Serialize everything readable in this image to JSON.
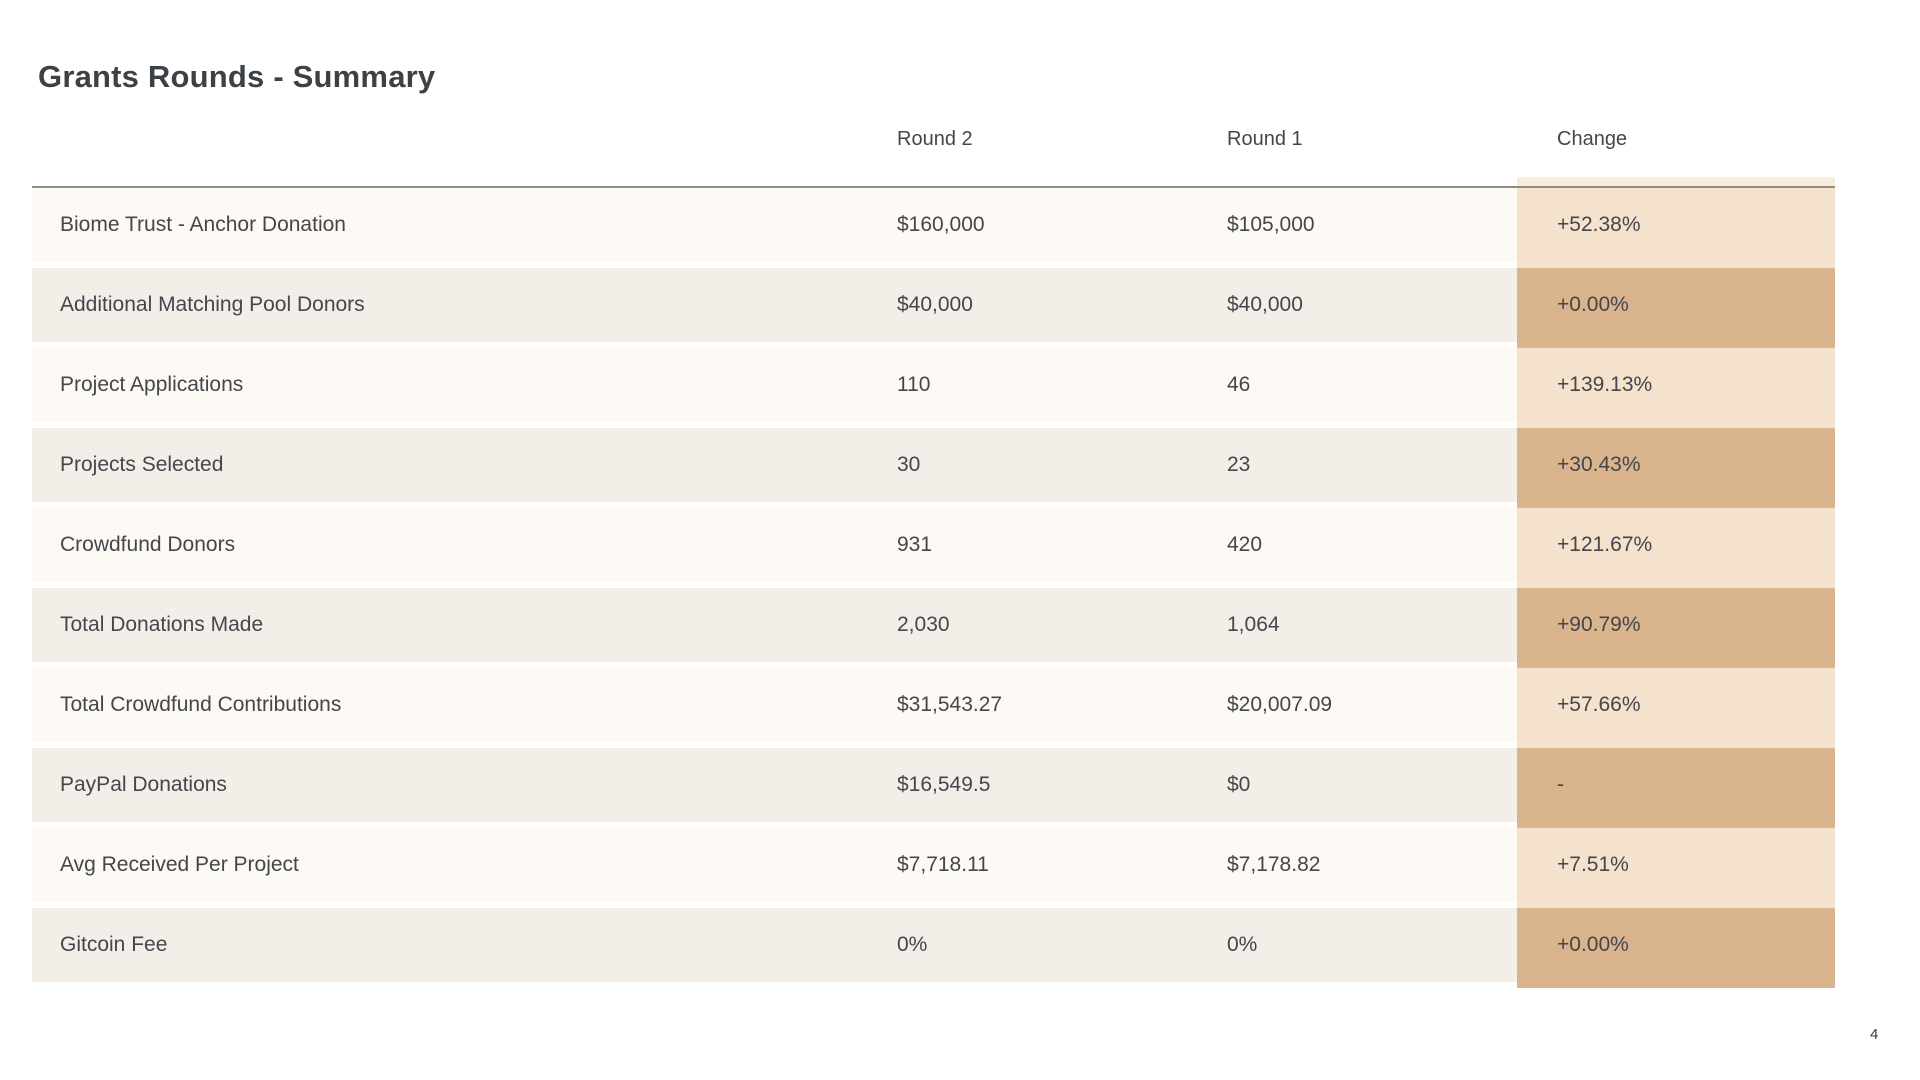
{
  "page": {
    "title": "Grants Rounds - Summary",
    "page_number": "4"
  },
  "table": {
    "header": {
      "round2": "Round 2",
      "round1": "Round 1",
      "change": "Change"
    },
    "rows": [
      {
        "label": "Biome Trust - Anchor Donation",
        "round2": "$160,000",
        "round1": "$105,000",
        "change": "+52.38%"
      },
      {
        "label": "Additional Matching Pool Donors",
        "round2": "$40,000",
        "round1": "$40,000",
        "change": "+0.00%"
      },
      {
        "label": "Project Applications",
        "round2": "110",
        "round1": "46",
        "change": "+139.13%"
      },
      {
        "label": "Projects Selected",
        "round2": "30",
        "round1": "23",
        "change": "+30.43%"
      },
      {
        "label": "Crowdfund Donors",
        "round2": "931",
        "round1": "420",
        "change": "+121.67%"
      },
      {
        "label": "Total Donations Made",
        "round2": "2,030",
        "round1": "1,064",
        "change": "+90.79%"
      },
      {
        "label": "Total Crowdfund Contributions",
        "round2": "$31,543.27",
        "round1": "$20,007.09",
        "change": "+57.66%"
      },
      {
        "label": "PayPal Donations",
        "round2": "$16,549.5",
        "round1": "$0",
        "change": "-"
      },
      {
        "label": "Avg Received Per Project",
        "round2": "$7,718.11",
        "round1": "$7,178.82",
        "change": "+7.51%"
      },
      {
        "label": "Gitcoin Fee",
        "round2": "0%",
        "round1": "0%",
        "change": "+0.00%"
      }
    ]
  },
  "colors": {
    "row_odd": "#fdf9f4",
    "row_even": "#f4eee8",
    "change_light": "#f5e2cc",
    "change_dark": "#d9b48c",
    "change_cap": "#f8ecdc",
    "rule": "#8f8b87",
    "text": "#43474b",
    "title": "#3c4146"
  }
}
